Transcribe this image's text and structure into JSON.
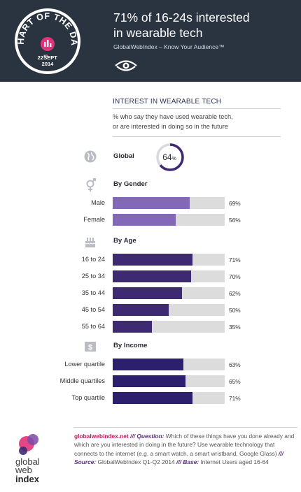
{
  "header": {
    "badge": {
      "title": "CHART OF THE DAY",
      "date_day": "22",
      "date_suffix": "ND",
      "date_month": "SEPT",
      "date_year": "2014"
    },
    "headline_line1": "71% of 16-24s interested",
    "headline_line2": "in wearable tech",
    "subline": "GlobalWebIndex – Know Your Audience™",
    "colors": {
      "bg": "#2a3340",
      "badge_ring": "#ffffff",
      "badge_accent": "#e0337a"
    }
  },
  "chart_data": {
    "type": "bar",
    "title": "INTEREST IN WEARABLE TECH",
    "subtitle_line1": "% who say they have used wearable tech,",
    "subtitle_line2": "or are interested in doing so in the future",
    "xlim": [
      0,
      100
    ],
    "unit": "%",
    "global": {
      "label": "Global",
      "value": 64,
      "value_text": "64",
      "unit": "%",
      "icon": "globe-icon"
    },
    "groups": [
      {
        "name": "By Gender",
        "icon": "gender-icon",
        "color": "#8468b8",
        "categories": [
          "Male",
          "Female"
        ],
        "values": [
          69,
          56
        ],
        "labels": [
          "69%",
          "56%"
        ]
      },
      {
        "name": "By Age",
        "icon": "birthday-cake-icon",
        "color": "#3d2a73",
        "categories": [
          "16 to 24",
          "25 to 34",
          "35 to 44",
          "45 to 54",
          "55 to 64"
        ],
        "values": [
          71,
          70,
          62,
          50,
          35
        ],
        "labels": [
          "71%",
          "70%",
          "62%",
          "50%",
          "35%"
        ]
      },
      {
        "name": "By Income",
        "icon": "dollar-icon",
        "color": "#2c1f6e",
        "categories": [
          "Lower quartile",
          "Middle quartiles",
          "Top quartile"
        ],
        "values": [
          63,
          65,
          71
        ],
        "labels": [
          "63%",
          "65%",
          "71%"
        ]
      }
    ],
    "colors": {
      "track": "#dcdcdc",
      "donut_ring": "#3d2a73",
      "donut_track": "#d8d8de"
    }
  },
  "footer": {
    "site": "globalwebindex.net",
    "sep1": "///",
    "question_label": "Question:",
    "question_text": "Which of these things have you done already and which are you interested in doing in the future? Use wearable technology that connects to the internet (e.g. a smart watch, a smart wristband, Google Glass)",
    "sep2": "///",
    "source_label": "Source:",
    "source_text": "GlobalWebIndex Q1-Q2 2014",
    "sep3": "///",
    "base_label": "Base:",
    "base_text": "Internet Users aged 16-64",
    "logo_word1": "global",
    "logo_word2": "web",
    "logo_word3": "index"
  }
}
